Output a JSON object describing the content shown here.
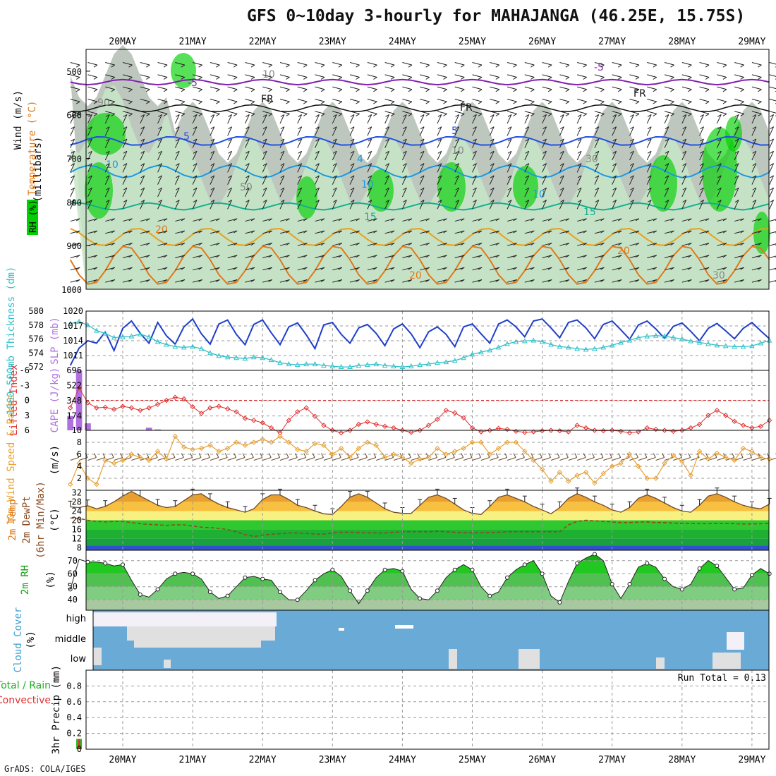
{
  "title": "GFS 0~10day 3-hourly for MAHAJANGA (46.25E, 15.75S)",
  "credit": "GrADS: COLA/IGES",
  "colors": {
    "rh_green": "#00d000",
    "rh_light": "#c8e6c8",
    "rh_grey": "#a8b4a8",
    "slp": "#1f3fc8",
    "thickness": "#30c0c8",
    "cape": "#b070e0",
    "lifted": "#e03030",
    "wind10": "#e8a030",
    "barb": "#6b4a2a",
    "temp_fill": "#e07818",
    "cloud": "#6aaad6",
    "precip_total": "#20c020",
    "precip_conv": "#e03030",
    "isotherm_5": "#8020b0",
    "isotherm_fr": "#111111"
  },
  "chart_data": [
    {
      "type": "heatmap",
      "panel": "upper_air",
      "xlabels": [
        "20MAY",
        "21MAY",
        "22MAY",
        "23MAY",
        "24MAY",
        "25MAY",
        "26MAY",
        "27MAY",
        "28MAY",
        "29MAY"
      ],
      "ylabel": "(millibars)",
      "side_labels": [
        "Wind (m/s)",
        "Temperature (°C)",
        "RH (%)"
      ],
      "yticks": [
        500,
        600,
        700,
        800,
        900,
        1000
      ],
      "ylim": [
        1000,
        450
      ],
      "isotherm_labels": [
        "-5",
        "-5",
        "FR",
        "FR",
        "FR",
        "5",
        "5",
        "4",
        "10",
        "10",
        "10",
        "15",
        "15",
        "20",
        "20",
        "20",
        "30",
        "10",
        "10",
        "30",
        "50",
        "90"
      ]
    },
    {
      "type": "line",
      "panel": "slp_thickness",
      "left_label": "1000-500mb Thickness (dm)",
      "right_label": "SLP (mb)",
      "left_ticks": [
        572,
        574,
        576,
        578,
        580
      ],
      "right_ticks": [
        1011,
        1014,
        1017,
        1020
      ],
      "series": [
        {
          "name": "SLP (mb)",
          "values": [
            1009,
            1012.5,
            1014,
            1013.5,
            1015.8,
            1012,
            1016.5,
            1018,
            1015.5,
            1013.5,
            1017.7,
            1015,
            1013.3,
            1016.8,
            1018.4,
            1015.4,
            1013.3,
            1017.4,
            1018.2,
            1015.3,
            1013.2,
            1017.3,
            1018.2,
            1015.6,
            1013.2,
            1016.8,
            1017.6,
            1015.2,
            1012.4,
            1017.2,
            1017.7,
            1015.3,
            1013.5,
            1016.6,
            1017.3,
            1015.5,
            1013.0,
            1016.4,
            1017.4,
            1015.4,
            1012.6,
            1015.8,
            1016.8,
            1015.3,
            1012.8,
            1016.8,
            1017.4,
            1015.4,
            1013.5,
            1017.4,
            1018.2,
            1016.8,
            1014.8,
            1018.0,
            1018.4,
            1016.6,
            1014.6,
            1017.7,
            1018.2,
            1016.6,
            1014.4,
            1017.3,
            1018.0,
            1016.2,
            1014.3,
            1017.2,
            1018.0,
            1016.4,
            1014.5,
            1016.9,
            1017.6,
            1015.9,
            1014.0,
            1016.5,
            1017.5,
            1016.0,
            1014.4,
            1016.5,
            1017.7,
            1016.0,
            1014.4
          ]
        },
        {
          "name": "Thickness (dm)",
          "values": [
            578.2,
            578.5,
            578.0,
            577.2,
            576.8,
            576.2,
            576.3,
            576.4,
            576.7,
            576.3,
            575.6,
            575.2,
            574.9,
            574.8,
            574.9,
            574.6,
            574.0,
            573.6,
            573.4,
            573.3,
            573.2,
            573.4,
            573.3,
            573.0,
            572.6,
            572.4,
            572.3,
            572.4,
            572.4,
            572.2,
            572.1,
            572.0,
            572.0,
            572.2,
            572.3,
            572.4,
            572.2,
            572.1,
            572.0,
            572.1,
            572.3,
            572.4,
            572.6,
            572.7,
            572.9,
            573.3,
            573.8,
            574.1,
            574.4,
            574.8,
            575.3,
            575.6,
            575.7,
            575.8,
            575.6,
            575.2,
            574.9,
            574.8,
            574.6,
            574.5,
            574.6,
            574.8,
            575.1,
            575.5,
            575.8,
            576.2,
            576.4,
            576.5,
            576.4,
            576.2,
            576.0,
            575.7,
            575.5,
            575.3,
            575.1,
            575.0,
            574.9,
            574.9,
            575.0,
            575.4,
            575.8
          ]
        }
      ]
    },
    {
      "type": "bar",
      "panel": "cape_li",
      "left_label": "Lifted Index",
      "right_label": "CAPE (J/kg)",
      "left_ticks": [
        6,
        3,
        0,
        -3,
        -6
      ],
      "right_ticks": [
        10,
        174,
        348,
        522,
        696
      ],
      "series": [
        {
          "name": "CAPE (J/kg)",
          "values": [
            174,
            696,
            90,
            0,
            0,
            0,
            0,
            0,
            0,
            40,
            20,
            0,
            0,
            0,
            0,
            0,
            0,
            0,
            0,
            0,
            0,
            0,
            0,
            0,
            0,
            0,
            0,
            0,
            0,
            0,
            0,
            0,
            0,
            10,
            0,
            0,
            0,
            0,
            0,
            0,
            0,
            0,
            0,
            0,
            0,
            0,
            0,
            0,
            0,
            0,
            0,
            0,
            0,
            0,
            0,
            0,
            0,
            0,
            0,
            0,
            0,
            0,
            0,
            0,
            0,
            0,
            0,
            0,
            0,
            0,
            0,
            0,
            0,
            0,
            0,
            0,
            0,
            0,
            0,
            0,
            0
          ]
        },
        {
          "name": "Lifted Index",
          "values": [
            1.5,
            -2.5,
            0.5,
            1.5,
            1.4,
            1.8,
            1.2,
            1.5,
            2.0,
            1.5,
            0.8,
            0.0,
            -0.6,
            -0.3,
            1.3,
            2.6,
            1.5,
            1.2,
            1.7,
            2.3,
            3.6,
            4.0,
            4.5,
            5.5,
            6.5,
            4.0,
            2.3,
            1.5,
            3.2,
            5.0,
            6.0,
            6.5,
            6.0,
            4.8,
            4.3,
            4.8,
            5.2,
            5.5,
            6.0,
            6.4,
            6.0,
            5.0,
            3.8,
            2.0,
            2.5,
            3.5,
            5.5,
            6.3,
            6.0,
            5.6,
            5.8,
            6.2,
            6.4,
            6.3,
            6.1,
            6.0,
            6.1,
            6.3,
            5.0,
            5.5,
            6.0,
            6.1,
            6.0,
            6.2,
            6.5,
            6.3,
            5.5,
            5.8,
            6.0,
            6.2,
            6.0,
            5.5,
            4.8,
            3.0,
            2.0,
            3.0,
            4.2,
            5.0,
            5.5,
            5.2,
            4.0
          ]
        }
      ]
    },
    {
      "type": "line",
      "panel": "wind10m",
      "left_label": "10m Wind Speed & Barbs",
      "right_label": "(m/s)",
      "right_ticks": [
        2,
        4,
        6,
        8
      ],
      "series": [
        {
          "name": "10m Wind Speed",
          "values": [
            1.0,
            4.5,
            2.0,
            1.0,
            5.0,
            4.5,
            5.0,
            6.0,
            5.5,
            5.0,
            6.5,
            5.2,
            9.0,
            7.2,
            6.8,
            7.0,
            7.5,
            6.5,
            7.0,
            8.0,
            7.5,
            8.0,
            8.5,
            8.0,
            9.0,
            8.0,
            6.8,
            6.5,
            7.8,
            7.5,
            6.0,
            7.0,
            5.5,
            7.0,
            8.0,
            7.5,
            5.5,
            6.0,
            5.5,
            4.5,
            5.2,
            5.5,
            7.0,
            6.0,
            6.5,
            7.0,
            8.0,
            8.0,
            6.0,
            7.0,
            8.0,
            8.0,
            6.5,
            5.0,
            3.5,
            1.5,
            3.0,
            1.5,
            2.5,
            3.0,
            1.2,
            2.8,
            4.0,
            4.5,
            6.0,
            4.0,
            2.0,
            2.0,
            4.5,
            5.8,
            4.8,
            2.5,
            6.5,
            5.2,
            6.2,
            5.5,
            5.0,
            7.0,
            6.5,
            5.5,
            5.2
          ]
        }
      ]
    },
    {
      "type": "area",
      "panel": "temp2m",
      "left_label": "2m Temp 2m DewPt (6hr Min/Max)",
      "right_label": "(°C)",
      "right_ticks": [
        8,
        12,
        16,
        20,
        24,
        28,
        32
      ],
      "series": [
        {
          "name": "2m Temp",
          "values": [
            25.8,
            25.5,
            26.3,
            25.0,
            26.0,
            28.0,
            30.5,
            32.5,
            30.5,
            28.5,
            26.5,
            25.5,
            26.0,
            28.5,
            31.0,
            31.5,
            29.0,
            27.0,
            25.5,
            24.5,
            23.5,
            25.0,
            29.0,
            31.0,
            31.0,
            29.0,
            26.5,
            25.5,
            24.0,
            22.8,
            22.5,
            26.0,
            30.0,
            31.5,
            30.0,
            27.5,
            25.0,
            23.5,
            23.0,
            23.0,
            26.5,
            30.0,
            31.0,
            29.5,
            27.0,
            24.5,
            23.0,
            22.5,
            26.0,
            30.0,
            31.0,
            29.5,
            28.0,
            26.0,
            24.5,
            22.8,
            25.5,
            29.5,
            31.5,
            30.0,
            28.0,
            26.5,
            24.5,
            23.5,
            25.5,
            29.5,
            31.0,
            29.5,
            27.5,
            25.5,
            24.0,
            23.5,
            26.5,
            30.5,
            31.5,
            30.0,
            28.0,
            26.5,
            25.5,
            25.0,
            27.0
          ]
        },
        {
          "name": "2m DewPt",
          "values": [
            21.0,
            20.8,
            20.0,
            19.5,
            19.3,
            19.5,
            19.5,
            19.0,
            18.5,
            18.2,
            18.0,
            17.8,
            18.0,
            18.0,
            17.5,
            17.0,
            16.8,
            16.5,
            16.0,
            15.0,
            13.8,
            13.0,
            13.5,
            14.0,
            14.2,
            14.5,
            14.5,
            14.3,
            14.0,
            14.0,
            14.5,
            14.8,
            14.8,
            14.7,
            14.6,
            14.5,
            14.5,
            14.8,
            15.0,
            15.0,
            15.0,
            15.0,
            15.2,
            15.0,
            14.8,
            14.7,
            14.6,
            14.6,
            14.7,
            14.8,
            15.0,
            15.0,
            15.0,
            15.0,
            15.0,
            15.0,
            15.0,
            18.0,
            19.5,
            20.0,
            19.8,
            19.5,
            19.3,
            19.0,
            19.0,
            19.2,
            19.3,
            19.0,
            19.0,
            18.8,
            18.7,
            18.6,
            18.5,
            18.5,
            18.6,
            18.6,
            18.5,
            18.4,
            18.4,
            18.5,
            18.6
          ]
        }
      ]
    },
    {
      "type": "area",
      "panel": "rh2m",
      "left_label": "2m RH",
      "right_label": "(%)",
      "right_ticks": [
        40,
        50,
        60,
        70
      ],
      "series": [
        {
          "name": "2m RH",
          "values": [
            48,
            71,
            69,
            69,
            68,
            66,
            67,
            55,
            44,
            42,
            48,
            56,
            60,
            61,
            60,
            56,
            46,
            41,
            43,
            50,
            57,
            58,
            56,
            55,
            46,
            40,
            40,
            47,
            55,
            60,
            63,
            58,
            47,
            37,
            47,
            57,
            63,
            64,
            62,
            48,
            41,
            40,
            47,
            57,
            63,
            67,
            63,
            50,
            43,
            46,
            57,
            63,
            67,
            70,
            60,
            43,
            38,
            54,
            68,
            72,
            75,
            70,
            52,
            41,
            52,
            65,
            68,
            65,
            56,
            50,
            48,
            52,
            64,
            70,
            66,
            57,
            48,
            49,
            59,
            64,
            60
          ]
        }
      ]
    },
    {
      "type": "heatmap",
      "panel": "cloud_cover",
      "left_label": "Cloud Cover",
      "right_label": "(%)",
      "rows": [
        "high",
        "middle",
        "low"
      ]
    },
    {
      "type": "bar",
      "panel": "precip",
      "left_label": "Total / Rain Convective",
      "right_label": "3hr Precip (mm)",
      "yticks": [
        0,
        0.2,
        0.4,
        0.6,
        0.8
      ],
      "ylim": [
        0,
        1.0
      ],
      "annotation": "Run Total = 0.13",
      "series": [
        {
          "name": "Total / Rain",
          "values": [
            0,
            0.13,
            0,
            0,
            0,
            0,
            0,
            0,
            0,
            0,
            0,
            0,
            0,
            0,
            0,
            0,
            0,
            0,
            0,
            0,
            0,
            0,
            0,
            0,
            0,
            0,
            0,
            0,
            0,
            0,
            0,
            0,
            0,
            0,
            0,
            0,
            0,
            0,
            0,
            0,
            0,
            0,
            0,
            0,
            0,
            0,
            0,
            0,
            0,
            0,
            0,
            0,
            0,
            0,
            0,
            0,
            0,
            0,
            0,
            0,
            0,
            0,
            0,
            0,
            0,
            0,
            0,
            0,
            0,
            0,
            0,
            0,
            0,
            0,
            0,
            0,
            0,
            0,
            0,
            0,
            0
          ]
        },
        {
          "name": "Convective",
          "values": [
            0,
            0.13,
            0,
            0,
            0,
            0,
            0,
            0,
            0,
            0,
            0,
            0,
            0,
            0,
            0,
            0,
            0,
            0,
            0,
            0,
            0,
            0,
            0,
            0,
            0,
            0,
            0,
            0,
            0,
            0,
            0,
            0,
            0,
            0,
            0,
            0,
            0,
            0,
            0,
            0,
            0,
            0,
            0,
            0,
            0,
            0,
            0,
            0,
            0,
            0,
            0,
            0,
            0,
            0,
            0,
            0,
            0,
            0,
            0,
            0,
            0,
            0,
            0,
            0,
            0,
            0,
            0,
            0,
            0,
            0,
            0,
            0,
            0,
            0,
            0,
            0,
            0,
            0,
            0,
            0,
            0
          ]
        }
      ]
    }
  ]
}
